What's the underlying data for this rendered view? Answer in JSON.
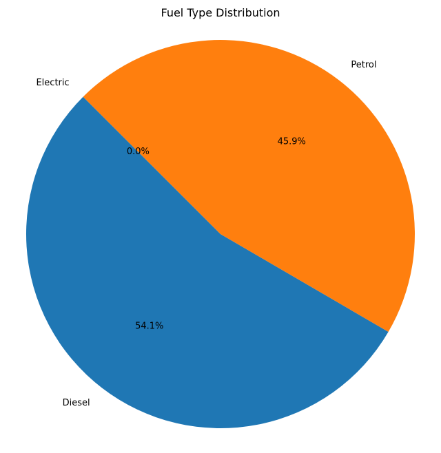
{
  "chart_data": {
    "type": "pie",
    "title": "Fuel Type Distribution",
    "start_angle_deg": 135,
    "direction": "counterclockwise",
    "slices": [
      {
        "label": "Electric",
        "value": 0.0,
        "pct_label": "0.0%",
        "color": "#2ca02c"
      },
      {
        "label": "Diesel",
        "value": 54.1,
        "pct_label": "54.1%",
        "color": "#1f77b4"
      },
      {
        "label": "Petrol",
        "value": 45.9,
        "pct_label": "45.9%",
        "color": "#ff7f0e"
      }
    ]
  }
}
